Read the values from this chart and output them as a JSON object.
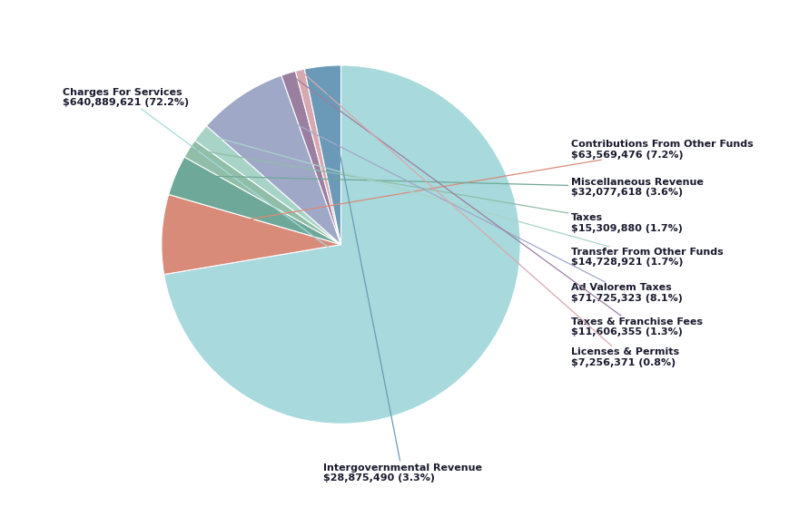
{
  "labels": [
    "Charges For Services",
    "Contributions From Other Funds",
    "Miscellaneous Revenue",
    "Taxes",
    "Transfer From Other Funds",
    "Ad Valorem Taxes",
    "Taxes & Franchise Fees",
    "Licenses & Permits",
    "Intergovernmental Revenue"
  ],
  "values": [
    640889621,
    63569476,
    32077618,
    15309880,
    14728921,
    71725323,
    11606355,
    7256371,
    28875490
  ],
  "percentages": [
    72.2,
    7.2,
    3.6,
    1.7,
    1.7,
    8.1,
    1.3,
    0.8,
    3.3
  ],
  "formatted_values": [
    "$640,889,621",
    "$63,569,476",
    "$32,077,618",
    "$15,309,880",
    "$14,728,921",
    "$71,725,323",
    "$11,606,355",
    "$7,256,371",
    "$28,875,490"
  ],
  "colors": [
    "#A8D9DC",
    "#D98B7A",
    "#6EA898",
    "#90BEA8",
    "#A8D4C8",
    "#A0A8C8",
    "#9B7FA0",
    "#D8A8B0",
    "#6B9AB8"
  ],
  "background_color": "#FFFFFF",
  "text_color": "#1a1a2e",
  "label_fontsize": 8.0,
  "startangle": 90
}
